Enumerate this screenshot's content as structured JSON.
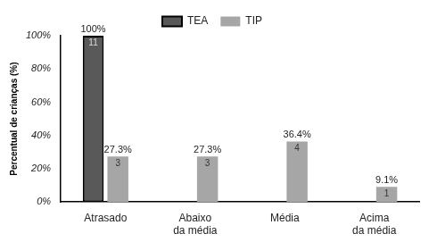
{
  "chart_data": {
    "type": "bar",
    "categories": [
      "Atrasado",
      "Abaixo\nda média",
      "Média",
      "Acima\nda média"
    ],
    "series": [
      {
        "name": "TEA",
        "color": "#595959",
        "values": [
          100,
          null,
          null,
          null
        ],
        "value_labels": [
          "100%",
          null,
          null,
          null
        ],
        "counts": [
          11,
          null,
          null,
          null
        ]
      },
      {
        "name": "TIP",
        "color": "#a6a6a6",
        "values": [
          27.3,
          27.3,
          36.4,
          9.1
        ],
        "value_labels": [
          "27.3%",
          "27.3%",
          "36.4%",
          "9.1%"
        ],
        "counts": [
          3,
          3,
          4,
          1
        ]
      }
    ],
    "y_label": "Percentual de crianças (%)",
    "ylim": [
      0,
      100
    ],
    "yticks": [
      {
        "value": 0,
        "label": "0%"
      },
      {
        "value": 20,
        "label": "20%"
      },
      {
        "value": 40,
        "label": "40%"
      },
      {
        "value": 60,
        "label": "60%"
      },
      {
        "value": 80,
        "label": "80%"
      },
      {
        "value": 100,
        "label": "100%"
      }
    ],
    "grid": false,
    "legend": "top",
    "data_labels": true
  }
}
